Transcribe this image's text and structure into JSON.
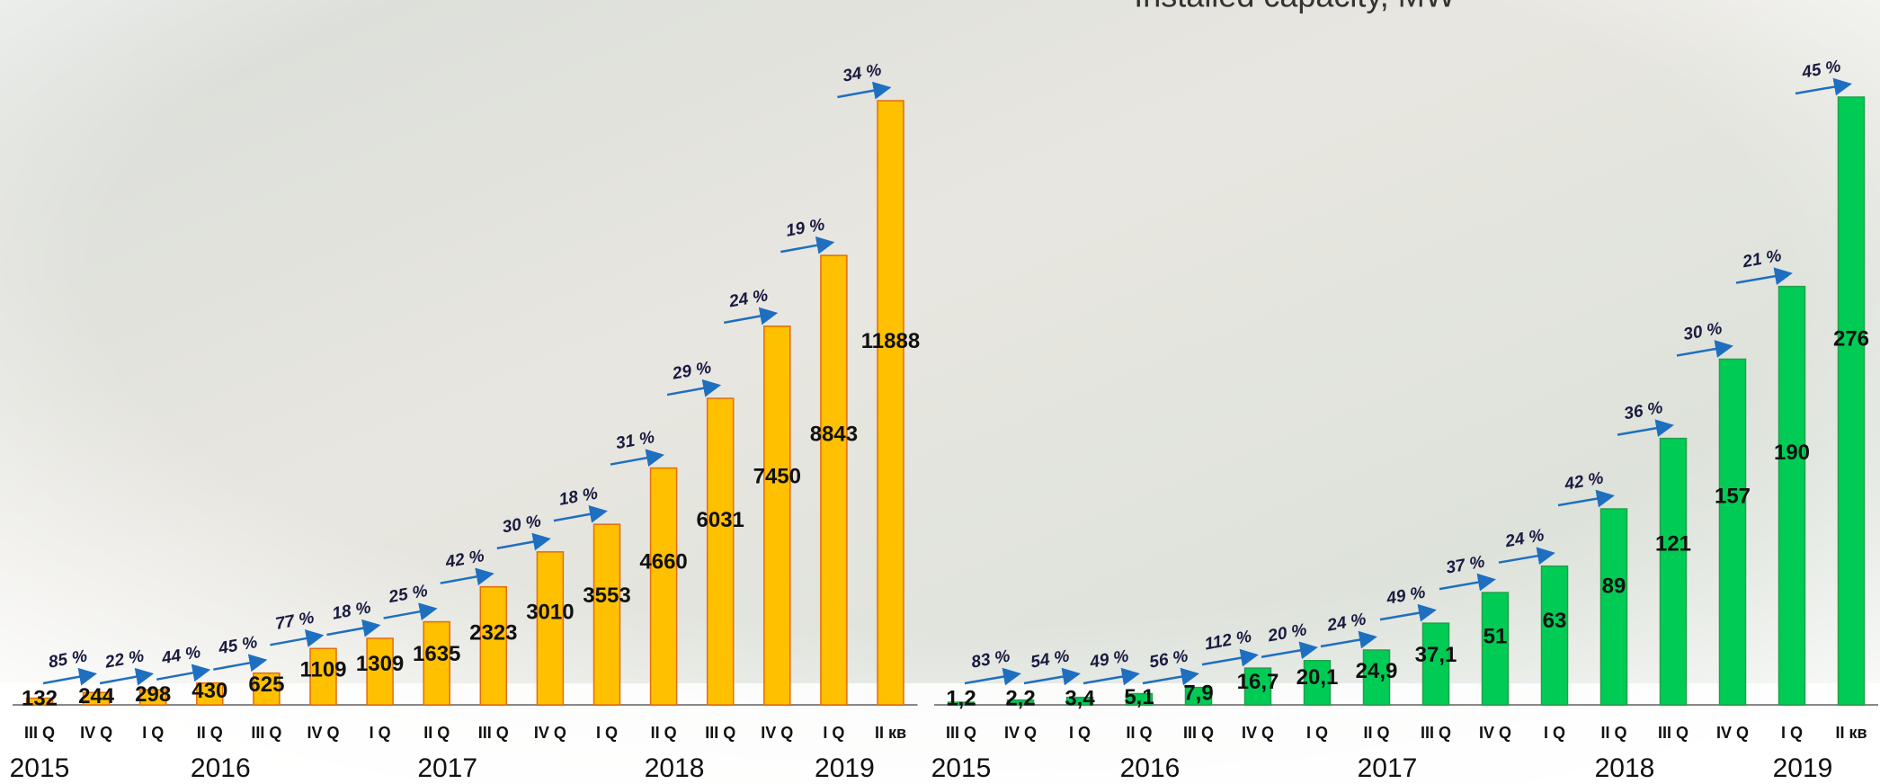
{
  "chart_data": [
    {
      "type": "bar",
      "categories": [
        "III Q",
        "IV Q",
        "I Q",
        "II Q",
        "III Q",
        "IV Q",
        "I Q",
        "II Q",
        "III Q",
        "IV Q",
        "I Q",
        "II Q",
        "III Q",
        "IV Q",
        "I Q",
        "II кв"
      ],
      "year_labels": [
        "2015",
        null,
        null,
        "2016",
        null,
        null,
        null,
        "2017",
        null,
        null,
        null,
        "2018",
        null,
        null,
        "2019",
        null
      ],
      "values": [
        132,
        244,
        298,
        430,
        625,
        1109,
        1309,
        1635,
        2323,
        3010,
        3553,
        4660,
        6031,
        7450,
        8843,
        11888
      ],
      "growth_labels": [
        "85 %",
        "22 %",
        "44 %",
        "45 %",
        "77 %",
        "18 %",
        "25 %",
        "42 %",
        "30 %",
        "18 %",
        "31 %",
        "29 %",
        "24 %",
        "19 %",
        "34 %"
      ],
      "color": "#ffc000",
      "edge_color": "#e46c0a"
    },
    {
      "type": "bar",
      "title": "Installed capacity, MW",
      "categories": [
        "III Q",
        "IV Q",
        "I Q",
        "II Q",
        "III Q",
        "IV Q",
        "I Q",
        "II Q",
        "III Q",
        "IV Q",
        "I Q",
        "II Q",
        "III Q",
        "IV Q",
        "I Q",
        "II кв"
      ],
      "year_labels": [
        "2015",
        null,
        null,
        "2016",
        null,
        null,
        null,
        "2017",
        null,
        null,
        null,
        "2018",
        null,
        null,
        "2019",
        null
      ],
      "values": [
        1.2,
        2.2,
        3.4,
        5.1,
        7.9,
        16.7,
        20.1,
        24.9,
        37.1,
        51,
        63,
        89,
        121,
        157,
        190,
        276
      ],
      "value_labels": [
        "1,2",
        "2,2",
        "3,4",
        "5,1",
        "7,9",
        "16,7",
        "20,1",
        "24,9",
        "37,1",
        "51",
        "63",
        "89",
        "121",
        "157",
        "190",
        "276"
      ],
      "growth_labels": [
        "83 %",
        "54 %",
        "49 %",
        "56 %",
        "112 %",
        "20 %",
        "24 %",
        "49 %",
        "37 %",
        "24 %",
        "42 %",
        "36 %",
        "30 %",
        "21 %",
        "45 %"
      ],
      "color": "#00cc55",
      "edge_color": "#22a04a"
    }
  ]
}
